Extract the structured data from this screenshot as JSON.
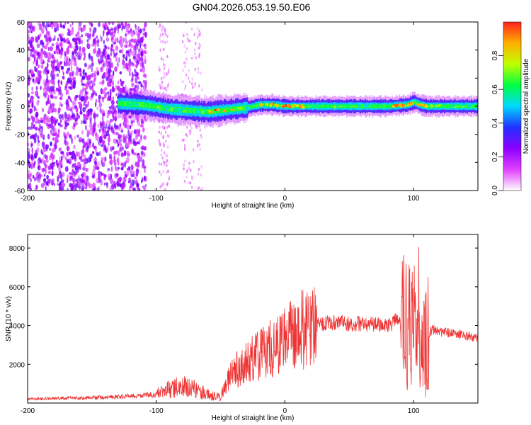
{
  "chart_data": [
    {
      "type": "heatmap",
      "title": "GN04.2026.053.19.50.E06",
      "xlabel": "Height of straight line (km)",
      "ylabel": "Frequency (Hz)",
      "xlim": [
        -200,
        150
      ],
      "ylim": [
        -60,
        60
      ],
      "xticks": [
        -200,
        -100,
        0,
        100
      ],
      "yticks": [
        -60,
        -40,
        -20,
        0,
        20,
        40,
        60
      ],
      "colorbar": {
        "label": "Normalized spectral amplitude",
        "range": [
          0,
          1
        ],
        "ticks": [
          0.0,
          0.2,
          0.4,
          0.6,
          0.8
        ],
        "tick_labels": [
          "0.0",
          "0.2",
          "0.4",
          "0.6",
          "0.8"
        ],
        "colors": [
          "#ffffff",
          "#e040ff",
          "#8a00ff",
          "#2030ff",
          "#00d8ff",
          "#00ff40",
          "#c0ff00",
          "#ffb000",
          "#ff2020"
        ]
      },
      "ridge": {
        "x": [
          -130,
          -110,
          -90,
          -75,
          -60,
          -50,
          -40,
          -30,
          -20,
          -10,
          0,
          20,
          40,
          60,
          80,
          95,
          100,
          105,
          110,
          130,
          150
        ],
        "freq": [
          2,
          1,
          -2,
          -3,
          -4,
          -3,
          -2,
          -1,
          1,
          1,
          0,
          0,
          0,
          0,
          0,
          1,
          3,
          1,
          0,
          0,
          0
        ]
      }
    },
    {
      "type": "line",
      "xlabel": "Height of straight line (km)",
      "ylabel": "SNR (10 * v/v)",
      "xlim": [
        -200,
        150
      ],
      "ylim": [
        0,
        8700
      ],
      "xticks": [
        -200,
        -100,
        0,
        100
      ],
      "yticks": [
        2000,
        4000,
        6000,
        8000
      ],
      "color": "#ee3333",
      "series": [
        {
          "name": "SNR",
          "x": [
            -200,
            -180,
            -160,
            -140,
            -120,
            -100,
            -90,
            -80,
            -70,
            -60,
            -55,
            -50,
            -45,
            -40,
            -30,
            -20,
            -10,
            0,
            10,
            20,
            30,
            40,
            50,
            60,
            70,
            80,
            85,
            90,
            95,
            100,
            103,
            106,
            110,
            115,
            120,
            130,
            140,
            150
          ],
          "values": [
            200,
            230,
            260,
            300,
            350,
            450,
            700,
            850,
            700,
            450,
            350,
            300,
            1200,
            1700,
            2100,
            2500,
            2900,
            3300,
            3700,
            4000,
            4100,
            4150,
            4100,
            4100,
            4050,
            4000,
            4200,
            4300,
            4200,
            3600,
            3000,
            2500,
            3500,
            3800,
            3700,
            3600,
            3500,
            3350
          ]
        }
      ]
    }
  ]
}
